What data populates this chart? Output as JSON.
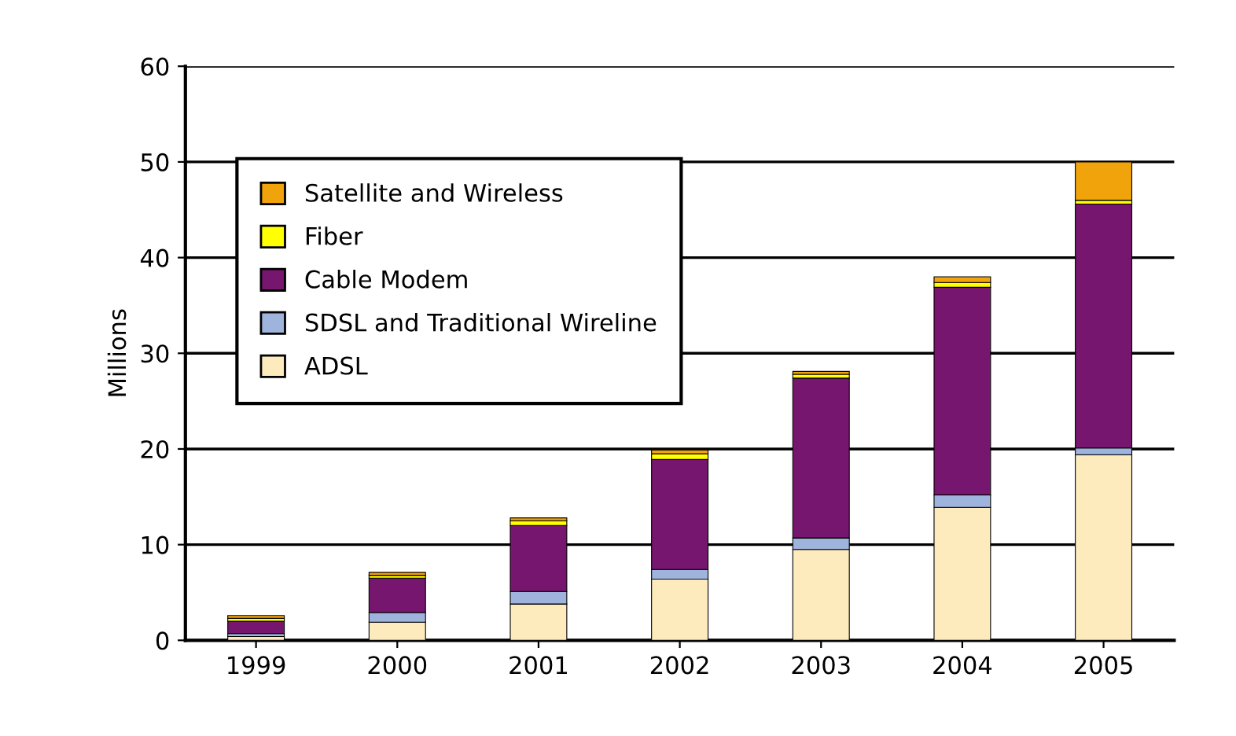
{
  "chart_data": {
    "type": "bar",
    "stacked": true,
    "ylabel": "Millions",
    "categories": [
      "1999",
      "2000",
      "2001",
      "2002",
      "2003",
      "2004",
      "2005"
    ],
    "series": [
      {
        "name": "ADSL",
        "color": "#fdebbd",
        "values": [
          0.4,
          1.9,
          3.8,
          6.4,
          9.5,
          13.9,
          19.4
        ]
      },
      {
        "name": "SDSL and Traditional Wireline",
        "color": "#9fb4dc",
        "values": [
          0.3,
          1.0,
          1.3,
          1.0,
          1.2,
          1.3,
          0.7
        ]
      },
      {
        "name": "Cable Modem",
        "color": "#76166f",
        "values": [
          1.3,
          3.6,
          6.9,
          11.5,
          16.7,
          21.7,
          25.5
        ]
      },
      {
        "name": "Fiber",
        "color": "#ffff00",
        "values": [
          0.3,
          0.3,
          0.5,
          0.6,
          0.4,
          0.5,
          0.4
        ]
      },
      {
        "name": "Satellite and Wireless",
        "color": "#f0a30a",
        "values": [
          0.3,
          0.3,
          0.3,
          0.4,
          0.3,
          0.6,
          4.0
        ]
      }
    ],
    "ylim": [
      0,
      60
    ],
    "yticks": [
      0,
      10,
      20,
      30,
      40,
      50,
      60
    ],
    "grid": "y",
    "legend": "top left"
  }
}
